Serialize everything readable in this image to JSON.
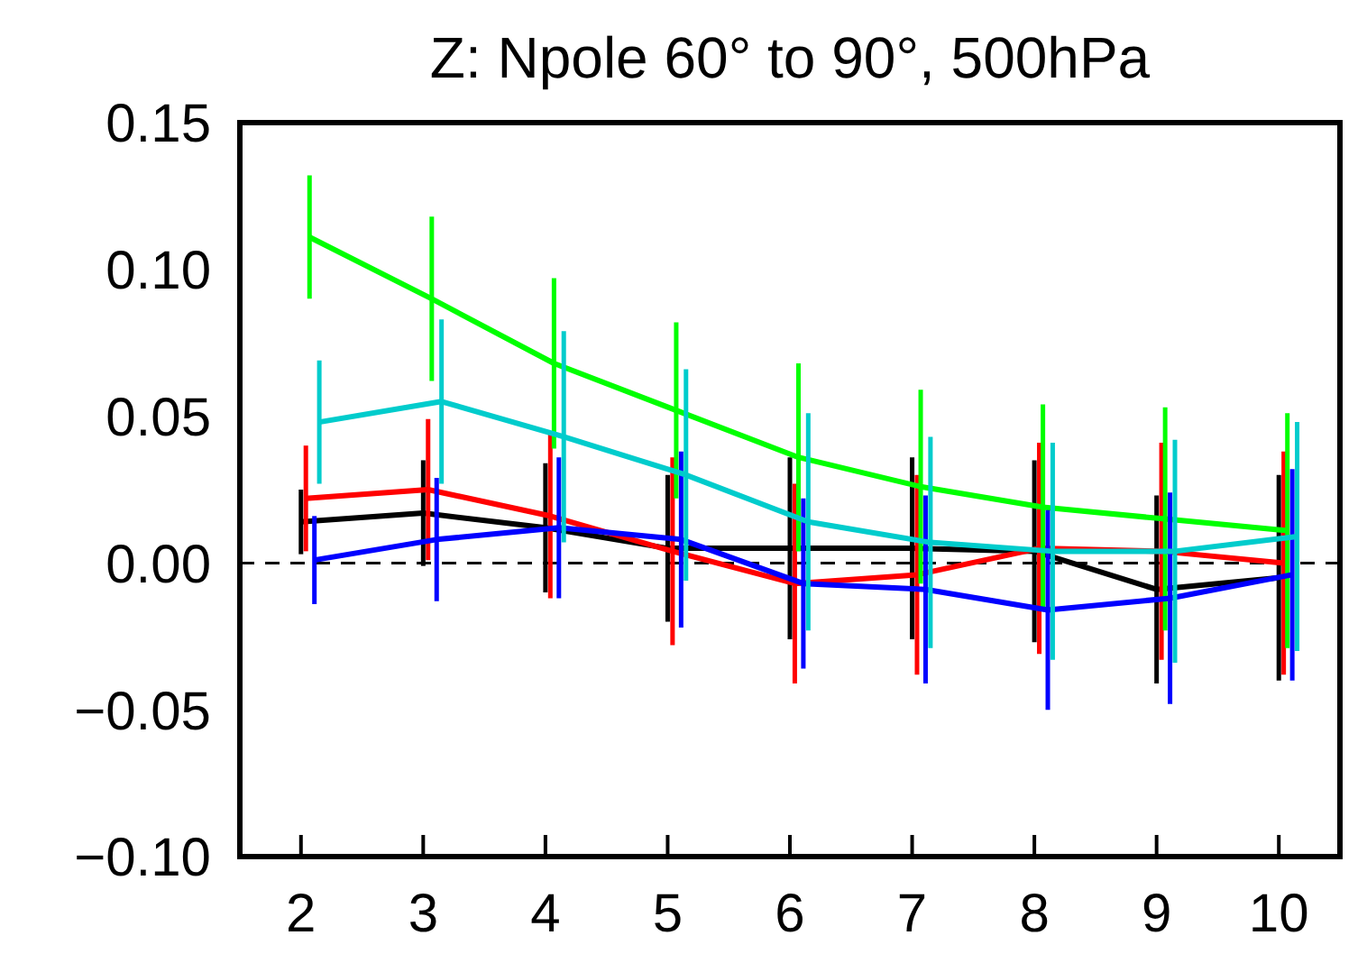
{
  "chart_data": {
    "type": "line",
    "title": "Z: Npole 60° to 90°, 500hPa",
    "xlim": [
      1.5,
      10.5
    ],
    "xticks": [
      2,
      3,
      4,
      5,
      6,
      7,
      8,
      9,
      10
    ],
    "ylim": [
      -0.1,
      0.15
    ],
    "yticks": [
      {
        "value": -0.1,
        "label": "−0.10"
      },
      {
        "value": -0.05,
        "label": "−0.05"
      },
      {
        "value": 0,
        "label": "0.00"
      },
      {
        "value": 0.05,
        "label": "0.05"
      },
      {
        "value": 0.1,
        "label": "0.10"
      },
      {
        "value": 0.15,
        "label": "0.15"
      }
    ],
    "marker": "none",
    "line_style": "solid",
    "ref_lines": [
      {
        "axis": "y",
        "value": 0,
        "color": "#000000",
        "line_style": "dashed"
      }
    ],
    "series": [
      {
        "color": "#000000",
        "x": [
          2,
          3,
          4,
          5,
          6,
          7,
          8,
          9,
          10
        ],
        "values": [
          0.014,
          0.017,
          0.012,
          0.005,
          0.005,
          0.005,
          0.004,
          -0.009,
          -0.005
        ],
        "errors": [
          0.011,
          0.018,
          0.022,
          0.025,
          0.031,
          0.031,
          0.031,
          0.032,
          0.035
        ]
      },
      {
        "color": "#ff0000",
        "x": [
          2.04,
          3.04,
          4.04,
          5.04,
          6.04,
          7.04,
          8.04,
          9.04,
          10.04
        ],
        "values": [
          0.022,
          0.025,
          0.016,
          0.004,
          -0.007,
          -0.004,
          0.005,
          0.004,
          0
        ],
        "errors": [
          0.018,
          0.024,
          0.028,
          0.032,
          0.034,
          0.034,
          0.036,
          0.037,
          0.038
        ]
      },
      {
        "color": "#00ff00",
        "x": [
          2.07,
          3.07,
          4.07,
          5.07,
          6.07,
          7.07,
          8.07,
          9.07,
          10.07
        ],
        "values": [
          0.111,
          0.09,
          0.068,
          0.052,
          0.036,
          0.026,
          0.019,
          0.015,
          0.011
        ],
        "errors": [
          0.021,
          0.028,
          0.029,
          0.03,
          0.032,
          0.033,
          0.035,
          0.038,
          0.04
        ]
      },
      {
        "color": "#0000ff",
        "x": [
          2.11,
          3.11,
          4.11,
          5.11,
          6.11,
          7.11,
          8.11,
          9.11,
          10.11
        ],
        "values": [
          0.001,
          0.008,
          0.012,
          0.008,
          -0.007,
          -0.009,
          -0.016,
          -0.012,
          -0.004
        ],
        "errors": [
          0.015,
          0.021,
          0.024,
          0.03,
          0.029,
          0.032,
          0.034,
          0.036,
          0.036
        ]
      },
      {
        "color": "#00cccc",
        "x": [
          2.15,
          3.15,
          4.15,
          5.15,
          6.15,
          7.15,
          8.15,
          9.15,
          10.15
        ],
        "values": [
          0.048,
          0.055,
          0.043,
          0.03,
          0.014,
          0.007,
          0.004,
          0.004,
          0.009
        ],
        "errors": [
          0.021,
          0.028,
          0.036,
          0.036,
          0.037,
          0.036,
          0.037,
          0.038,
          0.039
        ]
      }
    ]
  }
}
